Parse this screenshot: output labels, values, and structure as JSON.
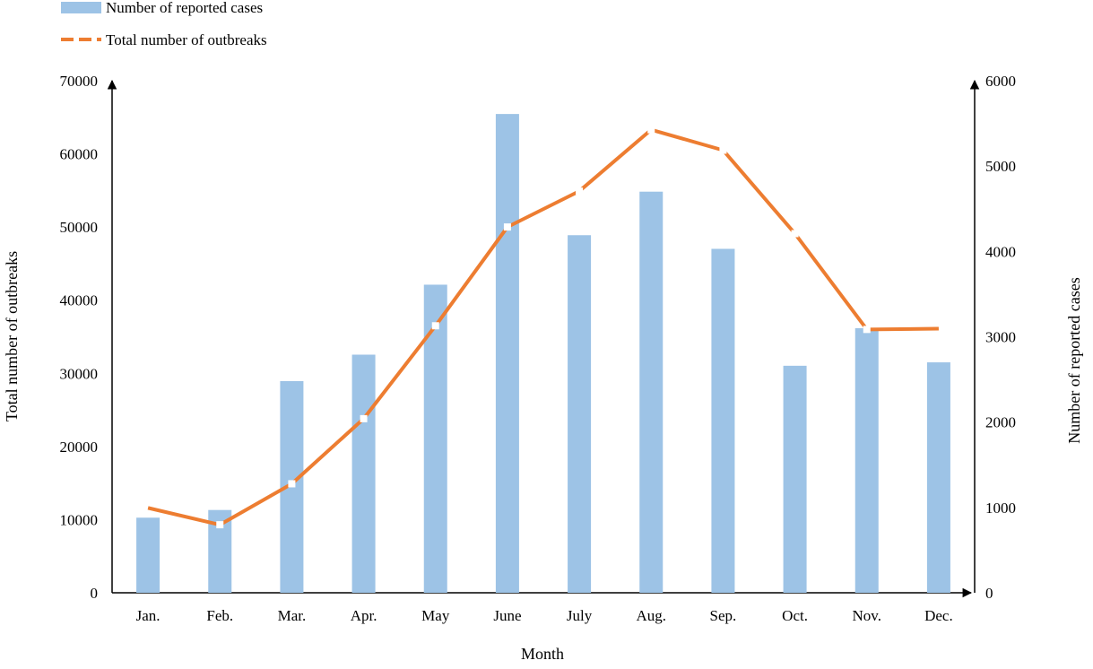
{
  "chart_data": {
    "type": "bar",
    "xlabel": "Month",
    "categories": [
      "Jan.",
      "Feb.",
      "Mar.",
      "Apr.",
      "May",
      "June",
      "July",
      "Aug.",
      "Sep.",
      "Oct.",
      "Nov.",
      "Dec."
    ],
    "left_axis": {
      "label": "Total number of outbreaks",
      "ylim": [
        0,
        70000
      ],
      "ticks": [
        "0",
        "10000",
        "20000",
        "30000",
        "40000",
        "50000",
        "60000",
        "70000"
      ]
    },
    "right_axis": {
      "label": "Number of reported cases",
      "ylim": [
        0,
        6000
      ],
      "ticks": [
        "0",
        "1000",
        "2000",
        "3000",
        "4000",
        "5000",
        "6000"
      ]
    },
    "series": [
      {
        "name": "Number of reported cases",
        "type": "bar",
        "axis": "right",
        "color": "#9DC3E6",
        "values": [
          880,
          970,
          2480,
          2790,
          3610,
          5610,
          4190,
          4700,
          4030,
          2660,
          3100,
          2700
        ]
      },
      {
        "name": "Total number of outbreaks",
        "type": "line",
        "axis": "left",
        "color": "#ED7D31",
        "line_style": "dashed",
        "values": [
          11600,
          9300,
          14900,
          23800,
          36500,
          50000,
          54900,
          63300,
          60500,
          49100,
          36000,
          36100
        ]
      }
    ],
    "legend_position": "top-left",
    "grid": false
  }
}
